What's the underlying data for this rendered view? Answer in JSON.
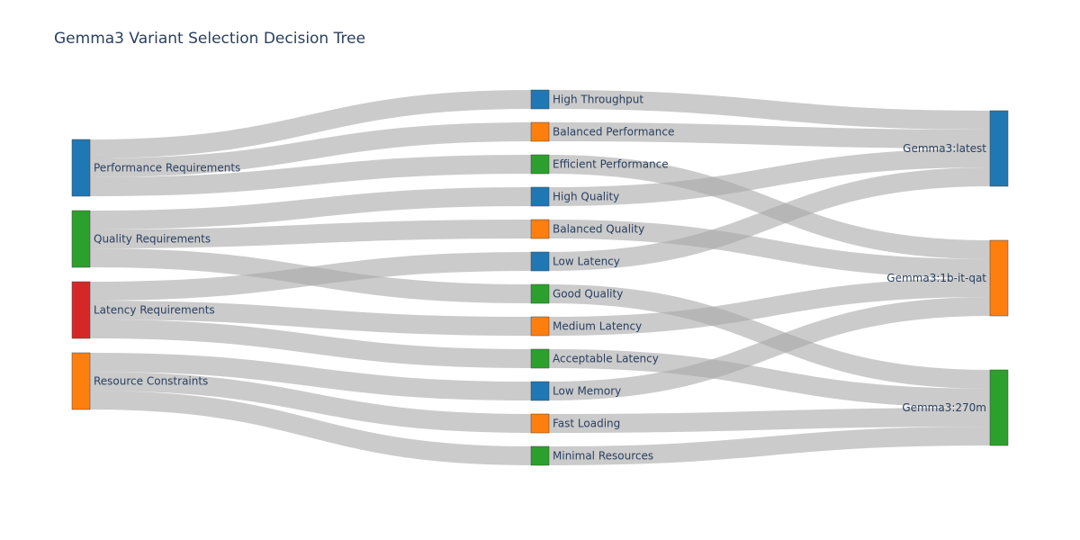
{
  "title": "Gemma3 Variant Selection Decision Tree",
  "colors": {
    "blue": "#1f77b4",
    "orange": "#ff7f0e",
    "green": "#2ca02c",
    "red": "#d62728",
    "link": "#a8a8a8"
  },
  "chart_data": {
    "type": "sankey",
    "nodes": [
      {
        "label": "Performance Requirements",
        "color": "blue"
      },
      {
        "label": "Quality Requirements",
        "color": "green"
      },
      {
        "label": "Latency Requirements",
        "color": "red"
      },
      {
        "label": "Resource Constraints",
        "color": "orange"
      },
      {
        "label": "High Throughput",
        "color": "blue"
      },
      {
        "label": "Balanced Performance",
        "color": "orange"
      },
      {
        "label": "Efficient Performance",
        "color": "green"
      },
      {
        "label": "High Quality",
        "color": "blue"
      },
      {
        "label": "Balanced Quality",
        "color": "orange"
      },
      {
        "label": "Low Latency",
        "color": "blue"
      },
      {
        "label": "Good Quality",
        "color": "green"
      },
      {
        "label": "Medium Latency",
        "color": "orange"
      },
      {
        "label": "Acceptable Latency",
        "color": "green"
      },
      {
        "label": "Low Memory",
        "color": "blue"
      },
      {
        "label": "Fast Loading",
        "color": "orange"
      },
      {
        "label": "Minimal Resources",
        "color": "green"
      },
      {
        "label": "Gemma3:latest",
        "color": "blue"
      },
      {
        "label": "Gemma3:1b-it-qat",
        "color": "orange"
      },
      {
        "label": "Gemma3:270m",
        "color": "green"
      }
    ],
    "links": [
      {
        "source": 0,
        "target": 4,
        "value": 1
      },
      {
        "source": 0,
        "target": 5,
        "value": 1
      },
      {
        "source": 0,
        "target": 6,
        "value": 1
      },
      {
        "source": 1,
        "target": 7,
        "value": 1
      },
      {
        "source": 1,
        "target": 8,
        "value": 1
      },
      {
        "source": 1,
        "target": 10,
        "value": 1
      },
      {
        "source": 2,
        "target": 9,
        "value": 1
      },
      {
        "source": 2,
        "target": 11,
        "value": 1
      },
      {
        "source": 2,
        "target": 12,
        "value": 1
      },
      {
        "source": 3,
        "target": 13,
        "value": 1
      },
      {
        "source": 3,
        "target": 14,
        "value": 1
      },
      {
        "source": 3,
        "target": 15,
        "value": 1
      },
      {
        "source": 4,
        "target": 16,
        "value": 1
      },
      {
        "source": 5,
        "target": 16,
        "value": 1
      },
      {
        "source": 7,
        "target": 16,
        "value": 1
      },
      {
        "source": 9,
        "target": 16,
        "value": 1
      },
      {
        "source": 6,
        "target": 17,
        "value": 1
      },
      {
        "source": 8,
        "target": 17,
        "value": 1
      },
      {
        "source": 11,
        "target": 17,
        "value": 1
      },
      {
        "source": 13,
        "target": 17,
        "value": 1
      },
      {
        "source": 10,
        "target": 18,
        "value": 1
      },
      {
        "source": 12,
        "target": 18,
        "value": 1
      },
      {
        "source": 14,
        "target": 18,
        "value": 1
      },
      {
        "source": 15,
        "target": 18,
        "value": 1
      }
    ]
  }
}
